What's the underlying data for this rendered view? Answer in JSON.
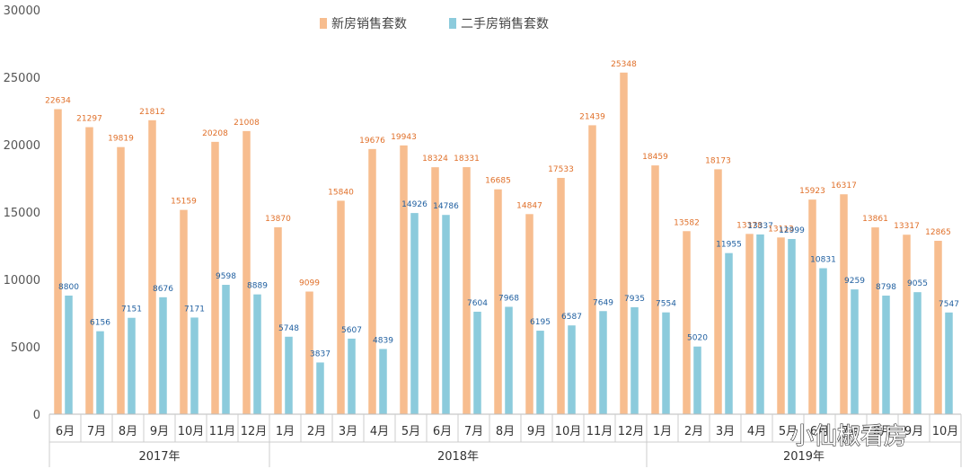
{
  "chart_data": {
    "type": "bar",
    "categories": [
      "6月",
      "7月",
      "8月",
      "9月",
      "10月",
      "11月",
      "12月",
      "1月",
      "2月",
      "3月",
      "4月",
      "5月",
      "6月",
      "7月",
      "8月",
      "9月",
      "10月",
      "11月",
      "12月",
      "1月",
      "2月",
      "3月",
      "4月",
      "5月",
      "6月",
      "7月",
      "8月",
      "9月",
      "10月"
    ],
    "groups": [
      {
        "label": "2017年",
        "count": 7
      },
      {
        "label": "2018年",
        "count": 12
      },
      {
        "label": "2019年",
        "count": 10
      }
    ],
    "series": [
      {
        "name": "新房销售套数",
        "color": "#f7bd8f",
        "values": [
          22634,
          21297,
          19819,
          21812,
          15159,
          20208,
          21008,
          13870,
          9099,
          15840,
          19676,
          19943,
          18324,
          18331,
          16685,
          14847,
          17533,
          21439,
          25348,
          18459,
          13582,
          18173,
          13378,
          13113,
          15923,
          16317,
          13861,
          13317,
          12865
        ]
      },
      {
        "name": "二手房销售套数",
        "color": "#8ccbdc",
        "values": [
          8800,
          6156,
          7151,
          8676,
          7171,
          9598,
          8889,
          5748,
          3837,
          5607,
          4839,
          14926,
          14786,
          7604,
          7968,
          6195,
          6587,
          7649,
          7935,
          7554,
          5020,
          11955,
          13337,
          12999,
          10831,
          9259,
          8798,
          9055,
          7547
        ]
      }
    ],
    "ylim": [
      0,
      30000
    ],
    "yticks": [
      0,
      5000,
      10000,
      15000,
      20000,
      25000,
      30000
    ],
    "grid": false,
    "legend": "top-center",
    "watermark": "小仙椒看房"
  }
}
